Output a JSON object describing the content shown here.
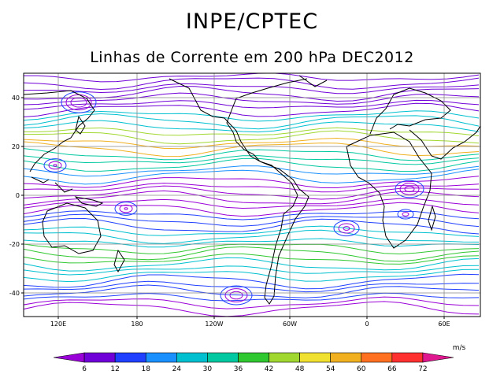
{
  "header": {
    "title": "INPE/CPTEC",
    "subtitle": "Linhas de Corrente em 200 hPa DEC2012"
  },
  "map": {
    "lat_labels": [
      "40",
      "20",
      "0",
      "-20",
      "-40"
    ],
    "lon_labels": [
      "120E",
      "180",
      "120W",
      "60W",
      "0",
      "60E"
    ]
  },
  "colorbar": {
    "unit": "m/s",
    "ticks": [
      "6",
      "12",
      "18",
      "24",
      "30",
      "36",
      "42",
      "48",
      "54",
      "60",
      "66",
      "72"
    ],
    "colors": [
      "#9a00d8",
      "#7000d8",
      "#2040ff",
      "#1a90ff",
      "#00c0d0",
      "#00c8a0",
      "#30c830",
      "#a0d830",
      "#f0e030",
      "#f0b020",
      "#ff7020",
      "#ff3030",
      "#e01890"
    ]
  }
}
